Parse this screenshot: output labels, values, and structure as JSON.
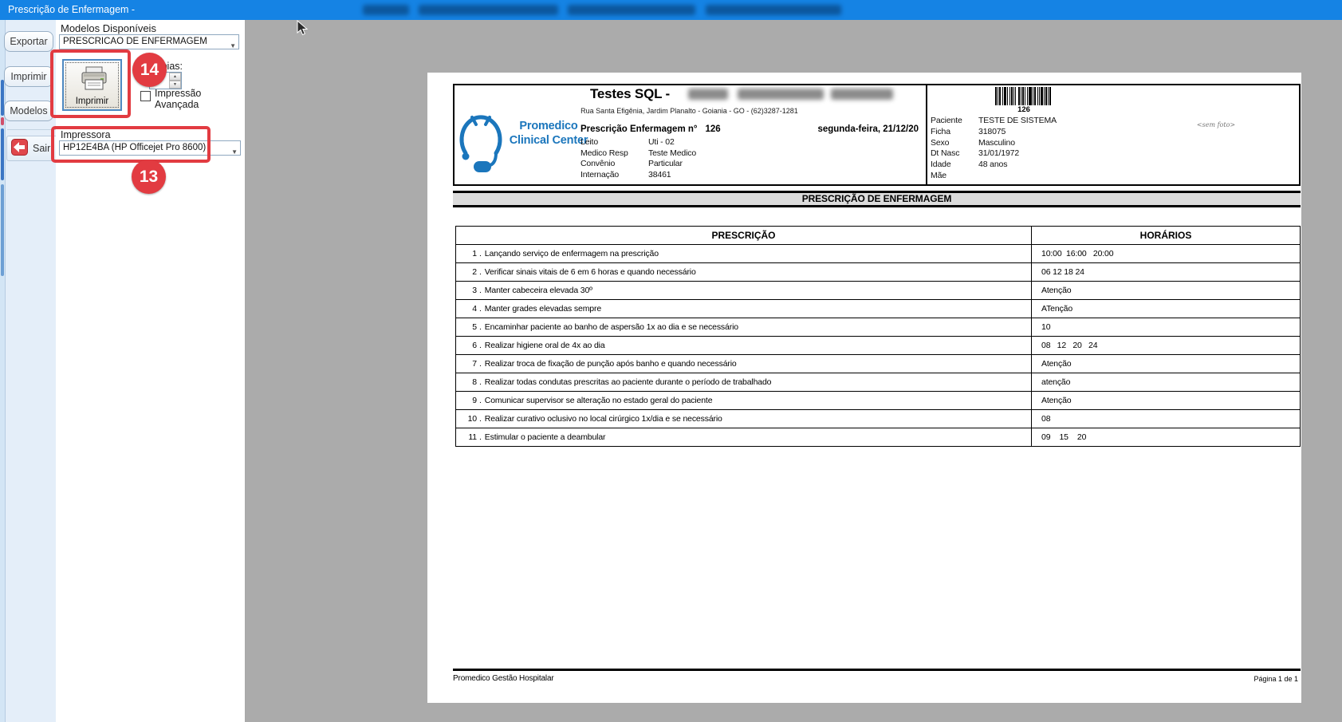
{
  "window": {
    "title": "Prescrição de Enfermagem -"
  },
  "sidebar": {
    "tabs": [
      {
        "label": "Exportar"
      },
      {
        "label": "Imprimir"
      },
      {
        "label": "Modelos"
      }
    ],
    "sair_label": "Sair"
  },
  "panel": {
    "modelos_label": "Modelos Disponíveis",
    "modelos_value": "PRESCRICAO DE ENFERMAGEM",
    "imprimir_label": "Imprimir",
    "copias_label": "Cópias:",
    "impressao_line1": "Impressão",
    "impressao_line2": "Avançada",
    "impressora_label": "Impressora",
    "impressora_value": "HP12E4BA (HP Officejet Pro 8600)"
  },
  "annotations": {
    "badge14": "14",
    "badge13": "13",
    "accent_color": "#E23B41"
  },
  "doc": {
    "title": "Testes SQL -",
    "address": "Rua Santa Efigênia, Jardim Planalto - Goiania - GO - (62)3287-1281",
    "logo_line1": "Promedico",
    "logo_line2": "Clinical Center",
    "presc_label": "Prescrição Enfermagem n°",
    "presc_number": "126",
    "date": "segunda-feira, 21/12/20",
    "info": [
      [
        "Leito",
        "Uti - 02"
      ],
      [
        "Medico Resp",
        "Teste Medico"
      ],
      [
        "Convênio",
        "Particular"
      ],
      [
        "Internação",
        "38461"
      ]
    ],
    "barcode_value": "126",
    "patient": [
      [
        "Paciente",
        "TESTE DE SISTEMA"
      ],
      [
        "Ficha",
        "318075"
      ],
      [
        "Sexo",
        "Masculino"
      ],
      [
        "Dt Nasc",
        "31/01/1972"
      ],
      [
        "Idade",
        "48 anos"
      ],
      [
        "Mãe",
        ""
      ]
    ],
    "sem_foto": "<sem foto>",
    "banner": "PRESCRIÇÃO DE ENFERMAGEM",
    "table": {
      "col_prescricao": "PRESCRIÇÃO",
      "col_horarios": "HORÁRIOS",
      "rows": [
        {
          "n": "1",
          "text": "Lançando serviço de enfermagem na prescrição",
          "h": "10:00  16:00   20:00"
        },
        {
          "n": "2",
          "text": "Verificar sinais vitais de 6 em 6 horas e quando necessário",
          "h": "06 12 18 24"
        },
        {
          "n": "3",
          "text": "Manter cabeceira elevada 30º",
          "h": "Atenção"
        },
        {
          "n": "4",
          "text": "Manter grades elevadas sempre",
          "h": "ATenção"
        },
        {
          "n": "5",
          "text": "Encaminhar paciente ao banho de aspersão 1x ao dia e se necessário",
          "h": "10"
        },
        {
          "n": "6",
          "text": "Realizar higiene oral de 4x ao dia",
          "h": "08   12   20   24"
        },
        {
          "n": "7",
          "text": "Realizar troca de fixação de punção após banho e quando necessário",
          "h": "Atenção"
        },
        {
          "n": "8",
          "text": "Realizar todas condutas prescritas ao paciente durante o período de trabalhado",
          "h": "atenção"
        },
        {
          "n": "9",
          "text": "Comunicar supervisor se alteração no estado geral do paciente",
          "h": "Atenção"
        },
        {
          "n": "10",
          "text": "Realizar curativo oclusivo no local cirúrgico 1x/dia e se necessário",
          "h": "08"
        },
        {
          "n": "11",
          "text": "Estimular o paciente a deambular",
          "h": "09    15    20"
        }
      ]
    },
    "footer_left": "Promedico Gestão Hospitalar",
    "footer_right": "Página 1 de 1"
  }
}
